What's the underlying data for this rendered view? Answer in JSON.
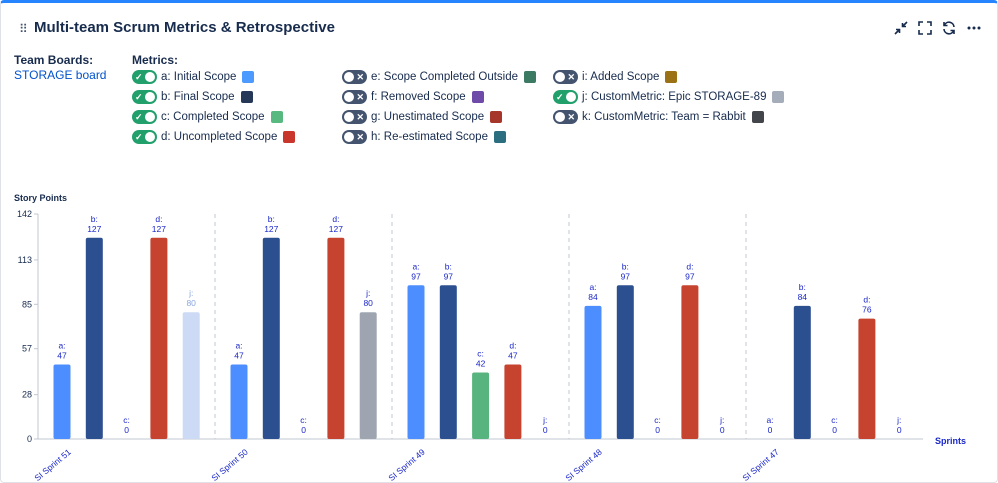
{
  "header": {
    "title": "Multi-team Scrum Metrics & Retrospective",
    "drag_icon": "⠿",
    "actions": [
      {
        "name": "collapse-icon"
      },
      {
        "name": "fullscreen-icon"
      },
      {
        "name": "refresh-icon"
      },
      {
        "name": "more-icon"
      }
    ]
  },
  "team": {
    "label": "Team Boards:",
    "board": "STORAGE board"
  },
  "metrics": {
    "label": "Metrics:",
    "items": [
      {
        "label": "a: Initial Scope",
        "on": true,
        "color": "#4c9aff"
      },
      {
        "label": "b: Final Scope",
        "on": true,
        "color": "#253858"
      },
      {
        "label": "c: Completed Scope",
        "on": true,
        "color": "#57b980"
      },
      {
        "label": "d: Uncompleted Scope",
        "on": true,
        "color": "#c9372c"
      },
      {
        "label": "e: Scope Completed Outside",
        "on": false,
        "color": "#3d7a63"
      },
      {
        "label": "f: Removed Scope",
        "on": false,
        "color": "#6e4ba8"
      },
      {
        "label": "g: Unestimated Scope",
        "on": false,
        "color": "#a6362a"
      },
      {
        "label": "h: Re-estimated Scope",
        "on": false,
        "color": "#2a6e80"
      },
      {
        "label": "i: Added Scope",
        "on": false,
        "color": "#9a7114"
      },
      {
        "label": "j: CustomMetric: Epic STORAGE-89",
        "on": true,
        "color": "#a5adba"
      },
      {
        "label": "k: CustomMetric: Team = Rabbit",
        "on": false,
        "color": "#42454a"
      }
    ]
  },
  "chart_data": {
    "type": "bar",
    "ylabel": "Story Points",
    "xlabel": "Sprints",
    "ylim": [
      0,
      142
    ],
    "yticks": [
      0,
      28,
      57,
      85,
      113,
      142
    ],
    "categories": [
      "SI Sprint 51",
      "SI Sprint 50",
      "SI Sprint 49",
      "SI Sprint 48",
      "SI Sprint 47"
    ],
    "series": [
      {
        "key": "a",
        "color": "#4c8dff",
        "values": [
          47,
          47,
          97,
          84,
          0
        ]
      },
      {
        "key": "b",
        "color": "#2c4f8f",
        "values": [
          127,
          127,
          97,
          97,
          84
        ]
      },
      {
        "key": "c",
        "color": "#57b47e",
        "values": [
          0,
          0,
          42,
          0,
          0
        ]
      },
      {
        "key": "d",
        "color": "#c5432f",
        "values": [
          127,
          127,
          47,
          97,
          76
        ]
      },
      {
        "key": "j",
        "color": "#9ea5b1",
        "values": [
          80,
          80,
          0,
          0,
          0
        ]
      }
    ],
    "highlight": {
      "category": 0,
      "series": "j",
      "color": "#ccdaf5",
      "label_color": "#8aa6e0"
    },
    "grid": false,
    "legend": "top"
  }
}
